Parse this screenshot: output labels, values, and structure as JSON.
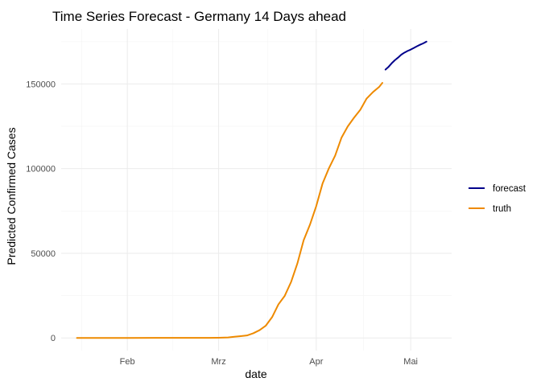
{
  "chart_data": {
    "type": "line",
    "title": "Time Series Forecast - Germany 14 Days ahead",
    "xlabel": "date",
    "ylabel": "Predicted Confirmed Cases",
    "xlim": [
      "2020-01-11",
      "2020-05-14"
    ],
    "ylim": [
      -7500,
      182500
    ],
    "grid": true,
    "legend_position": "right",
    "x_ticks": [
      {
        "label": "Feb",
        "date": "2020-02-01"
      },
      {
        "label": "Mrz",
        "date": "2020-03-01"
      },
      {
        "label": "Apr",
        "date": "2020-04-01"
      },
      {
        "label": "Mai",
        "date": "2020-05-01"
      }
    ],
    "y_ticks": [
      {
        "label": "0",
        "value": 0
      },
      {
        "label": "50000",
        "value": 50000
      },
      {
        "label": "100000",
        "value": 100000
      },
      {
        "label": "150000",
        "value": 150000
      }
    ],
    "series": [
      {
        "name": "forecast",
        "color": "#00008b",
        "points": [
          [
            "2020-04-23",
            158500
          ],
          [
            "2020-04-24",
            160200
          ],
          [
            "2020-04-25",
            162300
          ],
          [
            "2020-04-26",
            164100
          ],
          [
            "2020-04-27",
            165600
          ],
          [
            "2020-04-28",
            167300
          ],
          [
            "2020-04-29",
            168500
          ],
          [
            "2020-04-30",
            169500
          ],
          [
            "2020-05-01",
            170300
          ],
          [
            "2020-05-02",
            171300
          ],
          [
            "2020-05-03",
            172300
          ],
          [
            "2020-05-04",
            173200
          ],
          [
            "2020-05-05",
            174000
          ],
          [
            "2020-05-06",
            175000
          ]
        ]
      },
      {
        "name": "truth",
        "color": "#ee8a00",
        "points": [
          [
            "2020-01-16",
            0
          ],
          [
            "2020-01-27",
            1
          ],
          [
            "2020-02-01",
            8
          ],
          [
            "2020-02-10",
            14
          ],
          [
            "2020-02-20",
            16
          ],
          [
            "2020-02-25",
            18
          ],
          [
            "2020-02-27",
            46
          ],
          [
            "2020-03-01",
            130
          ],
          [
            "2020-03-04",
            262
          ],
          [
            "2020-03-06",
            670
          ],
          [
            "2020-03-08",
            1040
          ],
          [
            "2020-03-10",
            1457
          ],
          [
            "2020-03-12",
            2745
          ],
          [
            "2020-03-14",
            4585
          ],
          [
            "2020-03-16",
            7272
          ],
          [
            "2020-03-18",
            12327
          ],
          [
            "2020-03-20",
            19848
          ],
          [
            "2020-03-22",
            24873
          ],
          [
            "2020-03-24",
            32986
          ],
          [
            "2020-03-26",
            43938
          ],
          [
            "2020-03-28",
            57695
          ],
          [
            "2020-03-30",
            66885
          ],
          [
            "2020-04-01",
            77872
          ],
          [
            "2020-04-03",
            91159
          ],
          [
            "2020-04-05",
            100123
          ],
          [
            "2020-04-07",
            107663
          ],
          [
            "2020-04-09",
            118181
          ],
          [
            "2020-04-11",
            124908
          ],
          [
            "2020-04-13",
            130072
          ],
          [
            "2020-04-15",
            134753
          ],
          [
            "2020-04-17",
            141397
          ],
          [
            "2020-04-19",
            145184
          ],
          [
            "2020-04-21",
            148291
          ],
          [
            "2020-04-22",
            150648
          ]
        ]
      }
    ]
  }
}
